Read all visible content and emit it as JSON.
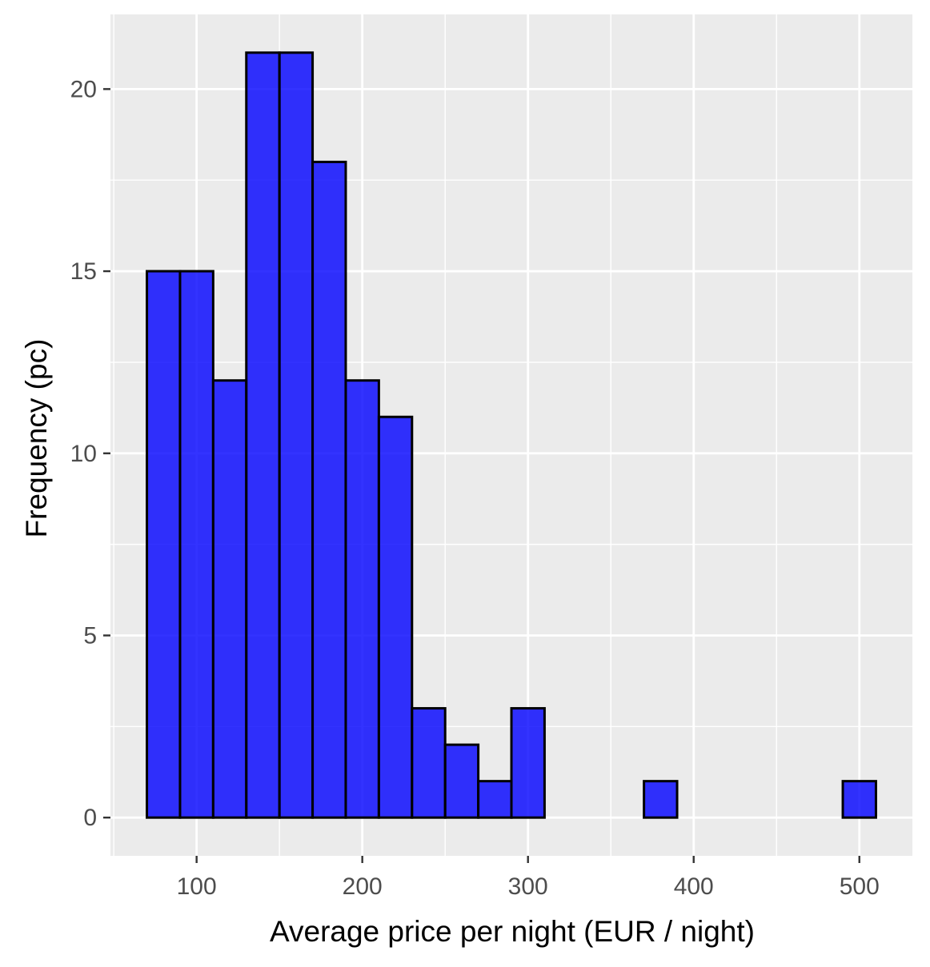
{
  "chart_data": {
    "type": "bar",
    "subtype": "histogram",
    "title": "",
    "xlabel": "Average price per night (EUR / night)",
    "ylabel": "Frequency (pc)",
    "xlim": [
      48,
      532
    ],
    "ylim": [
      -1.05,
      22.05
    ],
    "x_ticks": [
      100,
      200,
      300,
      400,
      500
    ],
    "y_ticks": [
      0,
      5,
      10,
      15,
      20
    ],
    "bin_width": 20,
    "bins": [
      {
        "x0": 70,
        "x1": 90,
        "count": 15
      },
      {
        "x0": 90,
        "x1": 110,
        "count": 15
      },
      {
        "x0": 110,
        "x1": 130,
        "count": 12
      },
      {
        "x0": 130,
        "x1": 150,
        "count": 21
      },
      {
        "x0": 150,
        "x1": 170,
        "count": 21
      },
      {
        "x0": 170,
        "x1": 190,
        "count": 18
      },
      {
        "x0": 190,
        "x1": 210,
        "count": 12
      },
      {
        "x0": 210,
        "x1": 230,
        "count": 11
      },
      {
        "x0": 230,
        "x1": 250,
        "count": 3
      },
      {
        "x0": 250,
        "x1": 270,
        "count": 2
      },
      {
        "x0": 270,
        "x1": 290,
        "count": 1
      },
      {
        "x0": 290,
        "x1": 310,
        "count": 3
      },
      {
        "x0": 310,
        "x1": 330,
        "count": 0
      },
      {
        "x0": 330,
        "x1": 350,
        "count": 0
      },
      {
        "x0": 350,
        "x1": 370,
        "count": 0
      },
      {
        "x0": 370,
        "x1": 390,
        "count": 1
      },
      {
        "x0": 390,
        "x1": 410,
        "count": 0
      },
      {
        "x0": 410,
        "x1": 430,
        "count": 0
      },
      {
        "x0": 430,
        "x1": 450,
        "count": 0
      },
      {
        "x0": 450,
        "x1": 470,
        "count": 0
      },
      {
        "x0": 470,
        "x1": 490,
        "count": 0
      },
      {
        "x0": 490,
        "x1": 510,
        "count": 1
      }
    ],
    "grid": true,
    "legend": "none",
    "colors": {
      "bar_fill": "#0000ff",
      "bar_fill_opacity": 0.8,
      "bar_outline": "#000000",
      "panel_background": "#ebebeb",
      "grid_line": "#ffffff",
      "tick_text": "#4d4d4d",
      "axis_title": "#000000"
    }
  }
}
